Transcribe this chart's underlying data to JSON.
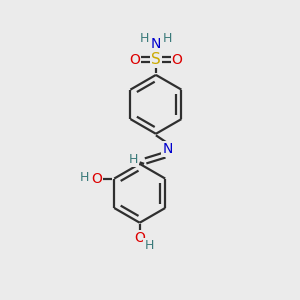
{
  "background_color": "#ebebeb",
  "atom_colors": {
    "C": "#2f2f2f",
    "N": "#0000cd",
    "O": "#dd0000",
    "S": "#ccaa00",
    "H": "#3a7a7a"
  },
  "bond_color": "#2f2f2f",
  "line_width": 1.6
}
